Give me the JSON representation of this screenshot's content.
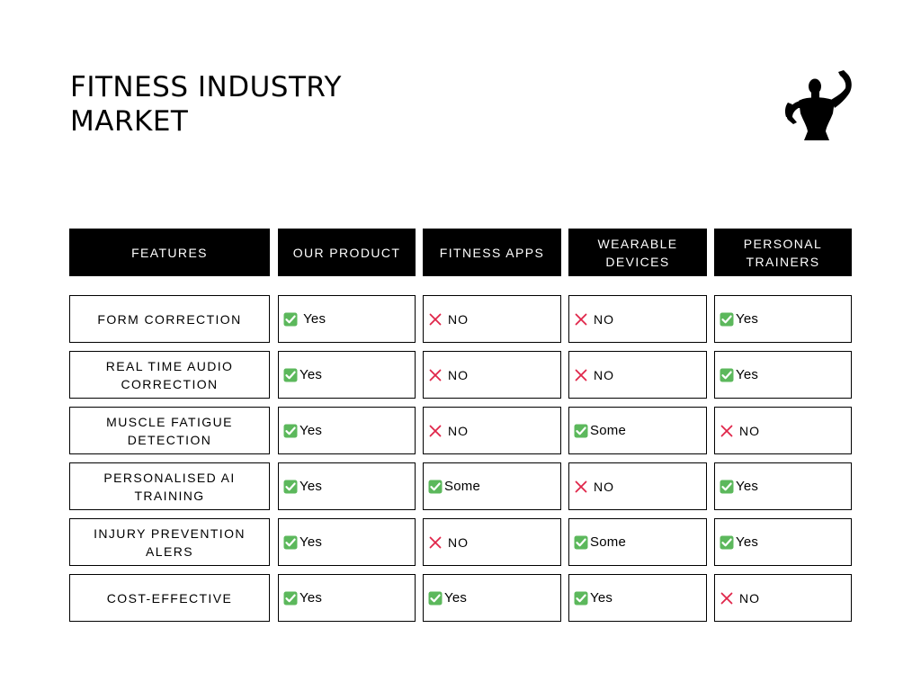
{
  "title": {
    "line1": "FITNESS INDUSTRY",
    "line2": "MARKET"
  },
  "logo": {
    "icon": "flexing-bodybuilder-icon",
    "color": "#000000"
  },
  "colors": {
    "yes_check": "#5cb85c",
    "no_cross": "#e0264a"
  },
  "headers": [
    "FEATURES",
    "OUR PRODUCT",
    "FITNESS APPS",
    "WEARABLE DEVICES",
    "PERSONAL TRAINERS"
  ],
  "rows": [
    {
      "feature": "FORM CORRECTION",
      "values": [
        " Yes",
        "NO",
        "NO",
        "Yes"
      ],
      "types": [
        "yes",
        "no",
        "no",
        "yes"
      ]
    },
    {
      "feature": "REAL TIME AUDIO CORRECTION",
      "values": [
        "Yes",
        "NO",
        "NO",
        "Yes"
      ],
      "types": [
        "yes",
        "no",
        "no",
        "yes"
      ]
    },
    {
      "feature": "MUSCLE FATIGUE DETECTION",
      "values": [
        "Yes",
        "NO",
        "Some",
        "NO"
      ],
      "types": [
        "yes",
        "no",
        "yes",
        "no"
      ]
    },
    {
      "feature": "PERSONALISED AI TRAINING",
      "values": [
        "Yes",
        "Some",
        "NO",
        "Yes"
      ],
      "types": [
        "yes",
        "yes",
        "no",
        "yes"
      ]
    },
    {
      "feature": "INJURY PREVENTION ALERS",
      "values": [
        "Yes",
        "NO",
        "Some",
        "Yes"
      ],
      "types": [
        "yes",
        "no",
        "yes",
        "yes"
      ]
    },
    {
      "feature": "COST-EFFECTIVE",
      "values": [
        "Yes",
        "Yes",
        "Yes",
        "NO"
      ],
      "types": [
        "yes",
        "yes",
        "yes",
        "no"
      ]
    }
  ]
}
